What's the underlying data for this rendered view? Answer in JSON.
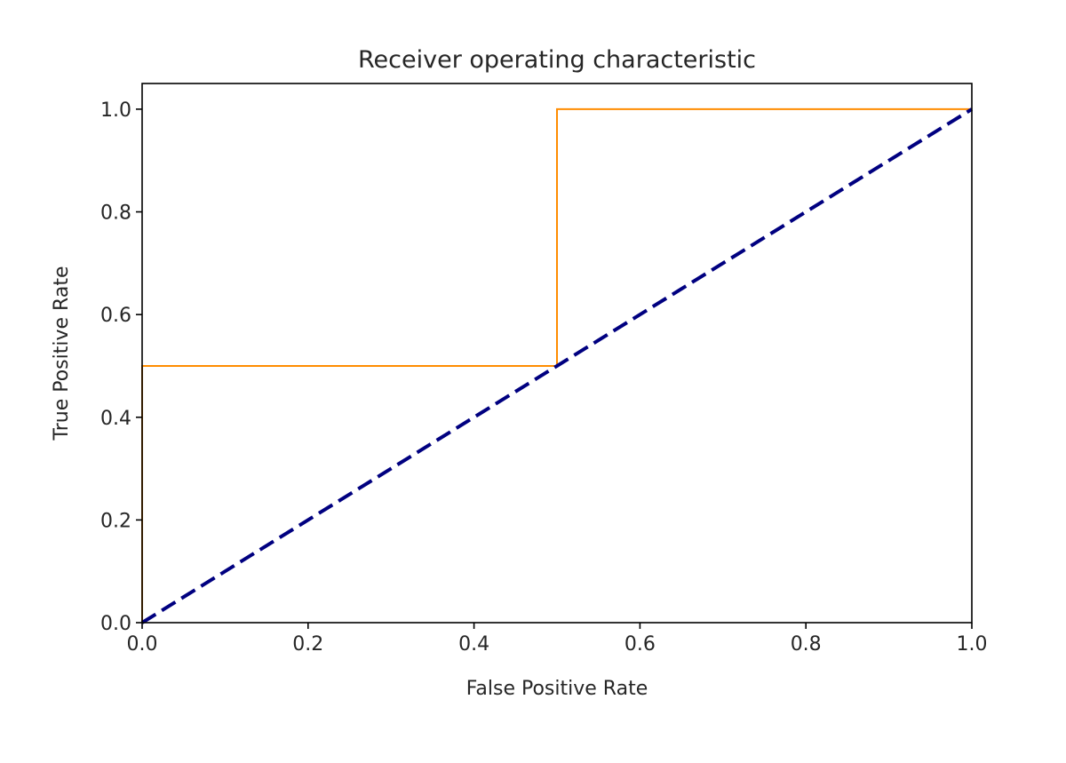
{
  "chart_data": {
    "type": "line",
    "title": "Receiver operating characteristic",
    "xlabel": "False Positive Rate",
    "ylabel": "True Positive Rate",
    "xlim": [
      0.0,
      1.0
    ],
    "ylim": [
      0.0,
      1.05
    ],
    "x_ticks": [
      "0.0",
      "0.2",
      "0.4",
      "0.6",
      "0.8",
      "1.0"
    ],
    "y_ticks": [
      "0.0",
      "0.2",
      "0.4",
      "0.6",
      "0.8",
      "1.0"
    ],
    "x_tick_values": [
      0.0,
      0.2,
      0.4,
      0.6,
      0.8,
      1.0
    ],
    "y_tick_values": [
      0.0,
      0.2,
      0.4,
      0.6,
      0.8,
      1.0
    ],
    "grid": false,
    "legend": false,
    "series": [
      {
        "style": "solid",
        "color": "#ff8c00",
        "x": [
          0.0,
          0.0,
          0.5,
          0.5,
          1.0
        ],
        "y": [
          0.0,
          0.5,
          0.5,
          1.0,
          1.0
        ]
      },
      {
        "style": "dashed",
        "color": "#000080",
        "x": [
          0.0,
          1.0
        ],
        "y": [
          0.0,
          1.0
        ]
      }
    ]
  }
}
